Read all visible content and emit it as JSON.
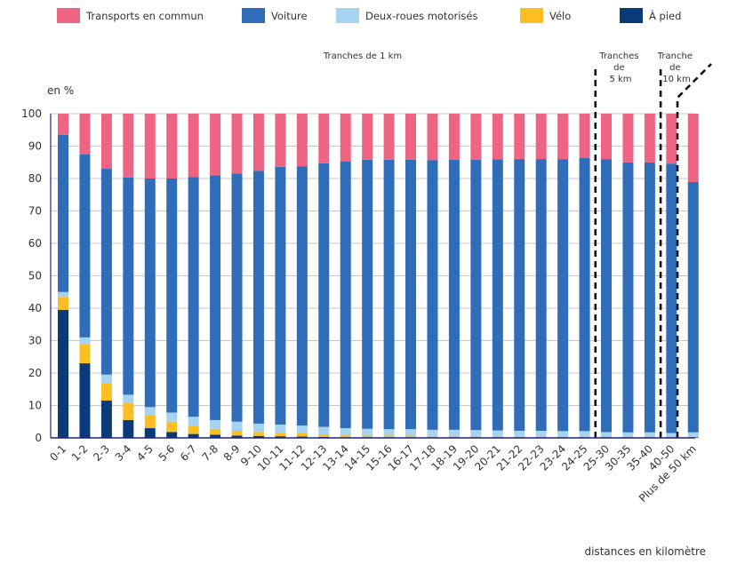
{
  "chart_data": {
    "type": "bar",
    "stacked": true,
    "title": "",
    "ylabel": "en %",
    "xlabel": "distances en kilomètre",
    "ylim": [
      0,
      100
    ],
    "yticks": [
      0,
      10,
      20,
      30,
      40,
      50,
      60,
      70,
      80,
      90,
      100
    ],
    "grid": true,
    "legend_position": "top",
    "categories": [
      "0-1",
      "1-2",
      "2-3",
      "3-4",
      "4-5",
      "5-6",
      "6-7",
      "7-8",
      "8-9",
      "9-10",
      "10-11",
      "11-12",
      "12-13",
      "13-14",
      "14-15",
      "15-16",
      "16-17",
      "17-18",
      "18-19",
      "19-20",
      "20-21",
      "21-22",
      "22-23",
      "23-24",
      "24-25",
      "25-30",
      "30-35",
      "35-40",
      "40-50",
      "Plus de 50 km"
    ],
    "series": [
      {
        "name": "À pied",
        "color": "#0b3a78",
        "values": [
          39.5,
          23,
          11.5,
          5.5,
          3,
          1.8,
          1.2,
          1,
          0.7,
          0.6,
          0.5,
          0.4,
          0.3,
          0.2,
          0.2,
          0.2,
          0.2,
          0.2,
          0.2,
          0.2,
          0.2,
          0.2,
          0.2,
          0.2,
          0.2,
          0.2,
          0.2,
          0.2,
          0.2,
          0.2
        ]
      },
      {
        "name": "Vélo",
        "color": "#fbbf24",
        "values": [
          4,
          6,
          5.5,
          5.3,
          4,
          3.2,
          2.5,
          1.8,
          1.5,
          1.2,
          1,
          1,
          0.8,
          0.6,
          0.5,
          0.5,
          0.5,
          0.4,
          0.4,
          0.4,
          0.3,
          0.3,
          0.3,
          0.3,
          0.3,
          0.2,
          0.2,
          0.2,
          0.2,
          0.2
        ]
      },
      {
        "name": "Deux-roues motorisés",
        "color": "#a6d3ef",
        "values": [
          1.5,
          2,
          2.5,
          2.5,
          2.5,
          2.8,
          2.8,
          2.7,
          2.8,
          2.6,
          2.6,
          2.4,
          2.3,
          2.2,
          2.1,
          2.0,
          2.0,
          1.9,
          1.9,
          1.8,
          1.8,
          1.7,
          1.7,
          1.6,
          1.6,
          1.4,
          1.3,
          1.3,
          1.1,
          1.3
        ]
      },
      {
        "name": "Voiture",
        "color": "#2f6db8",
        "values": [
          48.5,
          56.5,
          63.5,
          67,
          70.5,
          72.2,
          74,
          75.5,
          76.5,
          78,
          79.5,
          80,
          81.3,
          82.2,
          83,
          83.1,
          83.1,
          83.2,
          83.3,
          83.4,
          83.6,
          83.8,
          83.8,
          83.9,
          84.2,
          84.2,
          83.3,
          83.3,
          83.1,
          77.2
        ]
      },
      {
        "name": "Transports en commun",
        "color": "#ee6584",
        "values": [
          6.5,
          12.5,
          17,
          19.7,
          20,
          20,
          19.5,
          19,
          18.5,
          17.6,
          16.4,
          16.2,
          15.3,
          14.8,
          14.2,
          14.2,
          14.2,
          14.3,
          14.2,
          14.2,
          14.1,
          14.0,
          14.0,
          14.0,
          13.7,
          14.0,
          15.0,
          15.0,
          15.4,
          21.1
        ]
      }
    ],
    "annotations": [
      {
        "text": "Tranches de 1 km"
      },
      {
        "lines": [
          "Tranches",
          "de",
          "5 km"
        ]
      },
      {
        "lines": [
          "Tranche",
          "de",
          "10 km"
        ]
      }
    ]
  },
  "legend": [
    {
      "label": "Transports en commun",
      "color": "#ee6584"
    },
    {
      "label": "Voiture",
      "color": "#2f6db8"
    },
    {
      "label": "Deux-roues motorisés",
      "color": "#a6d3ef"
    },
    {
      "label": "Vélo",
      "color": "#fbbf24"
    },
    {
      "label": "À pied",
      "color": "#0b3a78"
    }
  ]
}
